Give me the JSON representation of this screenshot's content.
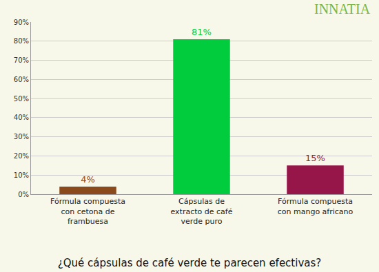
{
  "chart_data": {
    "type": "bar",
    "title": "¿Qué cápsulas de café verde te parecen efectivas?",
    "annotations": [
      "INNATIA"
    ],
    "categories": [
      "Fórmula compuesta con cetona de frambuesa",
      "Cápsulas de extracto de café verde puro",
      "Fórmula compuesta con mango africano"
    ],
    "values": [
      4,
      81,
      15
    ],
    "value_labels": [
      "4%",
      "81%",
      "15%"
    ],
    "colors": [
      "#8a4a1c",
      "#00cc3d",
      "#97164a"
    ],
    "data_labels": true,
    "ylim": [
      0,
      90
    ],
    "yticks": [
      {
        "value": 0,
        "label": "0%"
      },
      {
        "value": 10,
        "label": "10%"
      },
      {
        "value": 20,
        "label": "20%"
      },
      {
        "value": 30,
        "label": "30%"
      },
      {
        "value": 40,
        "label": "40%"
      },
      {
        "value": 50,
        "label": "50%"
      },
      {
        "value": 60,
        "label": "60%"
      },
      {
        "value": 70,
        "label": "70%"
      },
      {
        "value": 80,
        "label": "80%"
      },
      {
        "value": 90,
        "label": "90%"
      }
    ],
    "grid": true
  }
}
